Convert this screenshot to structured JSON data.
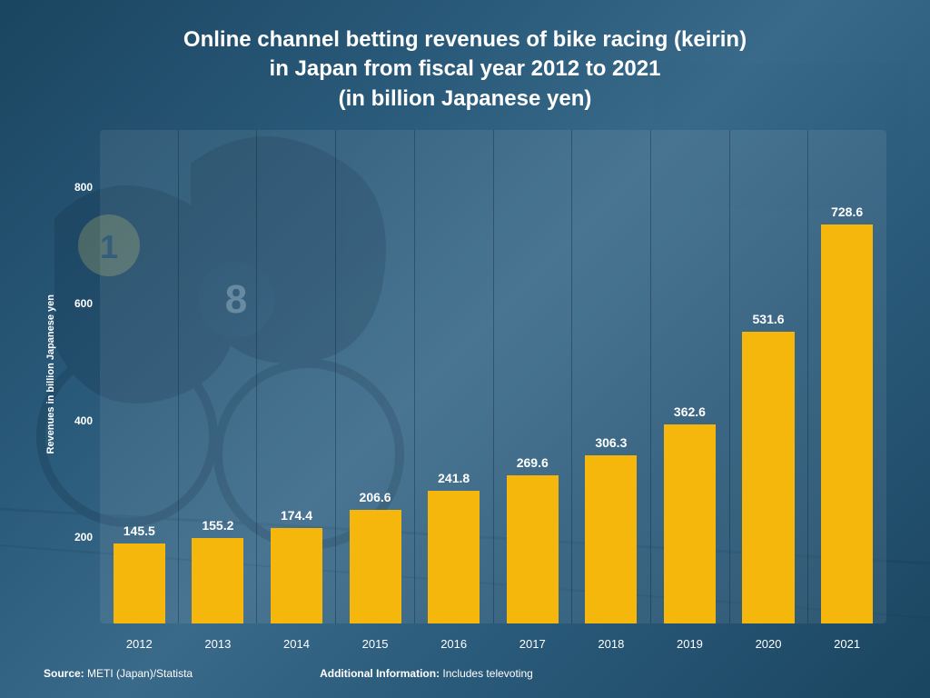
{
  "title_line1": "Online channel betting revenues of bike racing (keirin)",
  "title_line2": "in Japan from fiscal year 2012 to 2021",
  "title_line3": "(in billion Japanese yen)",
  "title_fontsize": 24,
  "title_color": "#ffffff",
  "chart": {
    "type": "bar",
    "categories": [
      "2012",
      "2013",
      "2014",
      "2015",
      "2016",
      "2017",
      "2018",
      "2019",
      "2020",
      "2021"
    ],
    "values": [
      145.5,
      155.2,
      174.4,
      206.6,
      241.8,
      269.6,
      306.3,
      362.6,
      531.6,
      728.6
    ],
    "value_labels": [
      "145.5",
      "155.2",
      "174.4",
      "206.6",
      "241.8",
      "269.6",
      "306.3",
      "362.6",
      "531.6",
      "728.6"
    ],
    "bar_color": "#f5b70c",
    "bar_width": 0.66,
    "ylabel": "Revenues in billion Japanese yen",
    "ylabel_fontsize": 11,
    "ylim": [
      0,
      900
    ],
    "yticks": [
      800,
      600,
      400,
      200
    ],
    "tick_color": "#ffffff",
    "tick_fontsize": 12,
    "value_label_color": "#ffffff",
    "value_label_fontsize": 14,
    "plot_background": "rgba(255,255,255,0.08)",
    "grid_vertical_color": "rgba(10,30,50,0.35)",
    "background_gradient": [
      "#1a4560",
      "#2a5a7a",
      "#3a6a8a"
    ]
  },
  "footer": {
    "source_label": "Source:",
    "source_value": "METI (Japan)/Statista",
    "additional_label": "Additional Information:",
    "additional_value": "Includes televoting"
  }
}
